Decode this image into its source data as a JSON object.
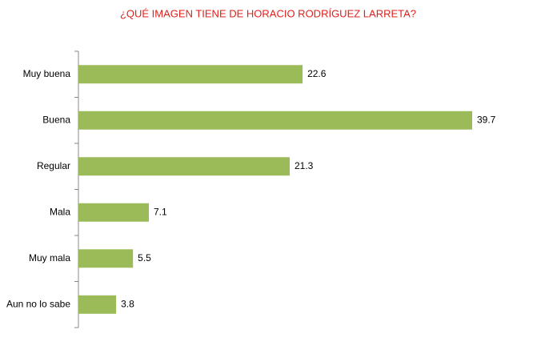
{
  "chart_data": {
    "type": "bar",
    "orientation": "horizontal",
    "title": "¿QUÉ IMAGEN TIENE DE HORACIO RODRÍGUEZ LARRETA?",
    "categories": [
      "Muy buena",
      "Buena",
      "Regular",
      "Mala",
      "Muy mala",
      "Aun no lo sabe"
    ],
    "values": [
      22.6,
      39.7,
      21.3,
      7.1,
      5.5,
      3.8
    ],
    "color": "#9bbb59",
    "title_color": "#e0201b"
  }
}
